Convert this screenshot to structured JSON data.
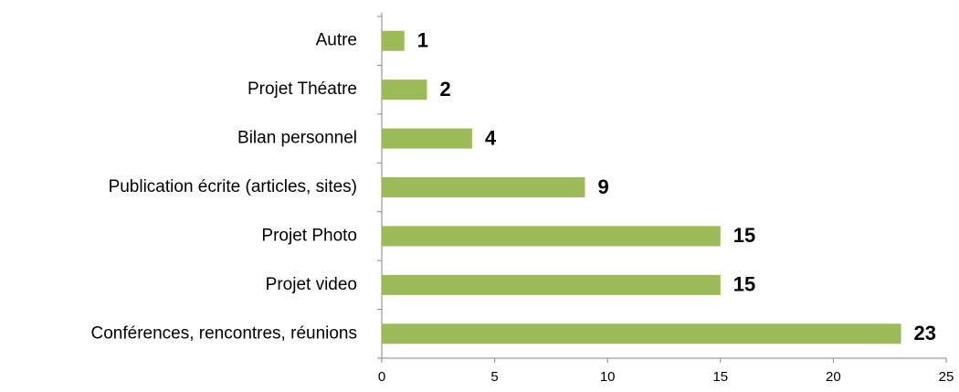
{
  "chart_data": {
    "type": "bar",
    "orientation": "horizontal",
    "categories": [
      "Autre",
      "Projet Théatre",
      "Bilan personnel",
      "Publication écrite (articles, sites)",
      "Projet Photo",
      "Projet video",
      "Conférences, rencontres, réunions"
    ],
    "values": [
      1,
      2,
      4,
      9,
      15,
      15,
      23
    ],
    "color": "#9bbb59",
    "xlim": [
      0,
      25
    ],
    "xticks": [
      0,
      5,
      10,
      15,
      20,
      25
    ],
    "grid": false
  }
}
